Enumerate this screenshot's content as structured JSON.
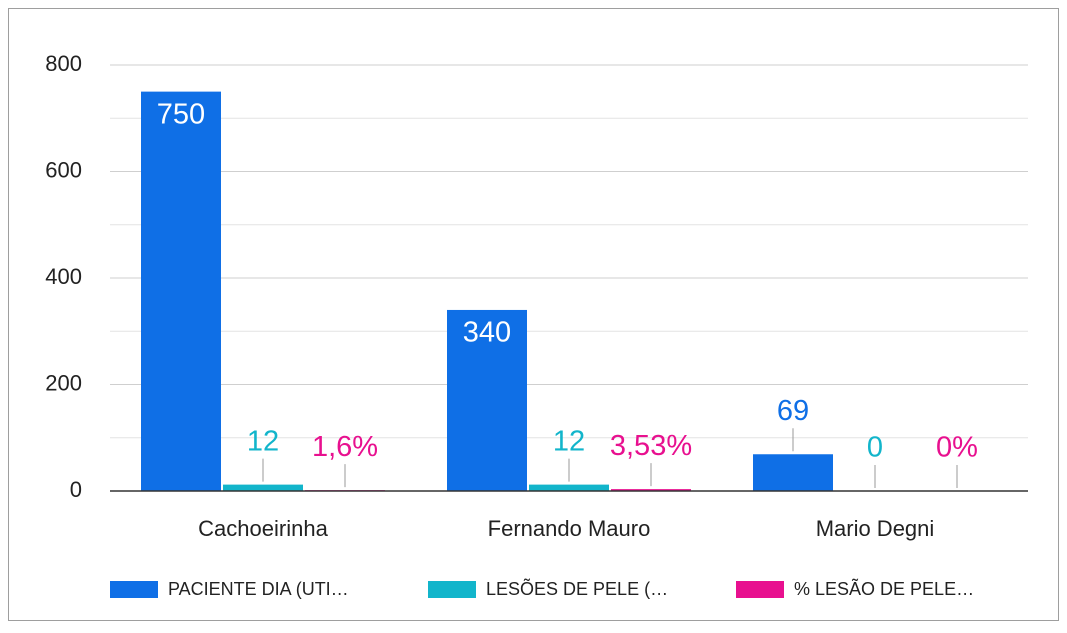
{
  "chart_data": {
    "type": "bar",
    "categories": [
      "Cachoeirinha",
      "Fernando Mauro",
      "Mario Degni"
    ],
    "series": [
      {
        "name": "PACIENTE DIA (UTI…",
        "color": "#0f6fe6",
        "values": [
          750,
          340,
          69
        ]
      },
      {
        "name": "LESÕES DE PELE (…",
        "color": "#12b5cb",
        "values": [
          12,
          12,
          0
        ]
      },
      {
        "name": "% LESÃO DE PELE…",
        "color": "#e8108f",
        "values": [
          1.6,
          3.53,
          0
        ],
        "value_labels": [
          "1,6%",
          "3,53%",
          "0%"
        ]
      }
    ],
    "ylim": [
      0,
      800
    ],
    "yticks": [
      0,
      200,
      400,
      600,
      800
    ],
    "minor_yticks": [
      100,
      300,
      500,
      700
    ],
    "grid": true,
    "legend": "bottom"
  }
}
